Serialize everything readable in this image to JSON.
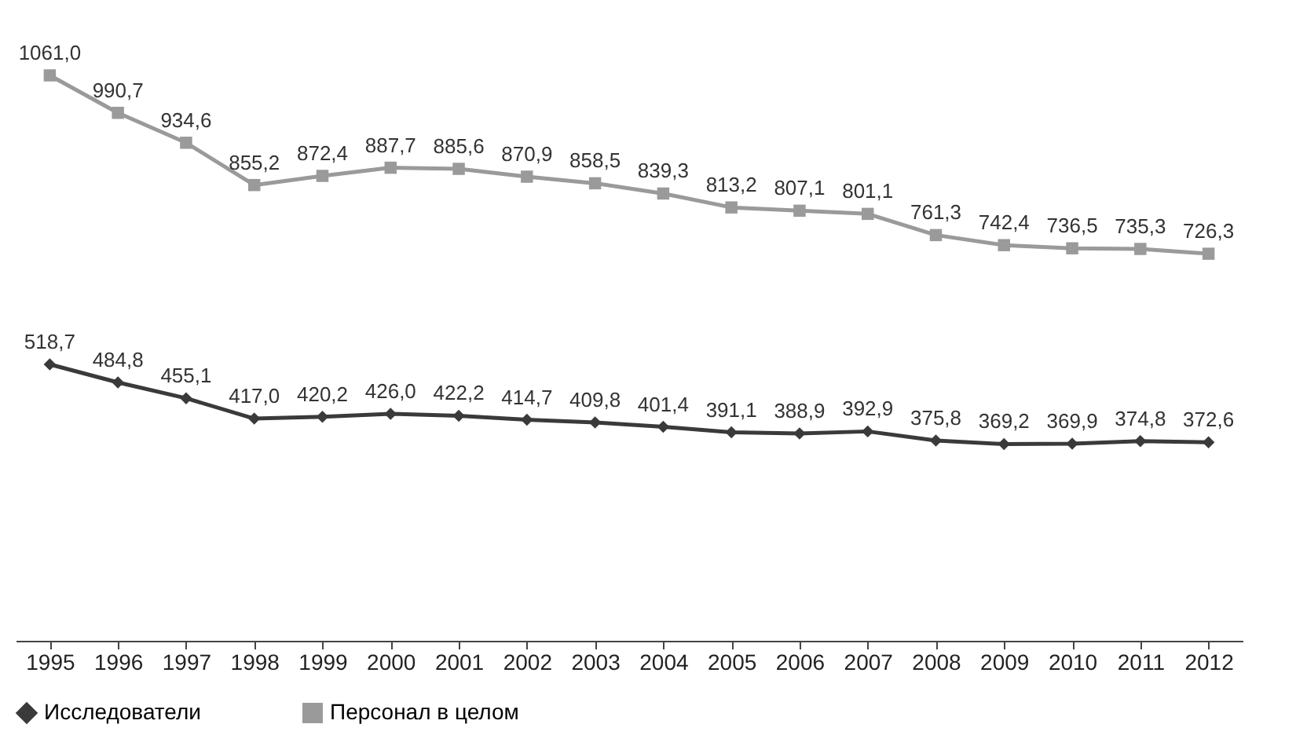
{
  "chart_data": {
    "type": "line",
    "categories": [
      "1995",
      "1996",
      "1997",
      "1998",
      "1999",
      "2000",
      "2001",
      "2002",
      "2003",
      "2004",
      "2005",
      "2006",
      "2007",
      "2008",
      "2009",
      "2010",
      "2011",
      "2012"
    ],
    "series": [
      {
        "name": "Исследователи",
        "color": "#3a3a3a",
        "marker": "diamond",
        "values": [
          518.7,
          484.8,
          455.1,
          417.0,
          420.2,
          426.0,
          422.2,
          414.7,
          409.8,
          401.4,
          391.1,
          388.9,
          392.9,
          375.8,
          369.2,
          369.9,
          374.8,
          372.6
        ],
        "value_labels": [
          "518,7",
          "484,8",
          "455,1",
          "417,0",
          "420,2",
          "426,0",
          "422,2",
          "414,7",
          "409,8",
          "401,4",
          "391,1",
          "388,9",
          "392,9",
          "375,8",
          "369,2",
          "369,9",
          "374,8",
          "372,6"
        ]
      },
      {
        "name": "Персонал в целом",
        "color": "#9a9a9a",
        "marker": "square",
        "values": [
          1061.0,
          990.7,
          934.6,
          855.2,
          872.4,
          887.7,
          885.6,
          870.9,
          858.5,
          839.3,
          813.2,
          807.1,
          801.1,
          761.3,
          742.4,
          736.5,
          735.3,
          726.3
        ],
        "value_labels": [
          "1061,0",
          "990,7",
          "934,6",
          "855,2",
          "872,4",
          "887,7",
          "885,6",
          "870,9",
          "858,5",
          "839,3",
          "813,2",
          "807,1",
          "801,1",
          "761,3",
          "742,4",
          "736,5",
          "735,3",
          "726,3"
        ]
      }
    ],
    "legend": "bottom",
    "tick_labels": "x",
    "grid": false,
    "line_style": "solid"
  }
}
